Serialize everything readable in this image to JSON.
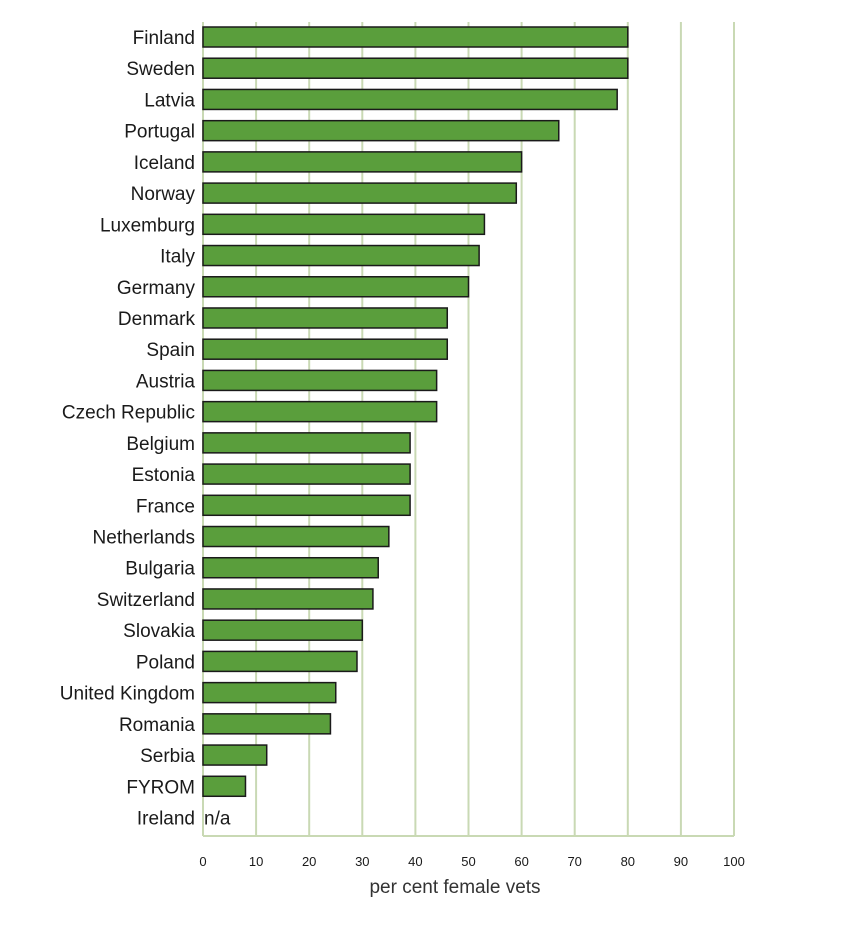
{
  "chart_data": {
    "type": "bar",
    "orientation": "horizontal",
    "xlabel": "per cent female vets",
    "xlim": [
      0,
      100
    ],
    "xticks": [
      "0",
      "10",
      "20",
      "30",
      "40",
      "50",
      "60",
      "70",
      "80",
      "90",
      "100"
    ],
    "grid": "vertical",
    "categories": [
      "Finland",
      "Sweden",
      "Latvia",
      "Portugal",
      "Iceland",
      "Norway",
      "Luxemburg",
      "Italy",
      "Germany",
      "Denmark",
      "Spain",
      "Austria",
      "Czech Republic",
      "Belgium",
      "Estonia",
      "France",
      "Netherlands",
      "Bulgaria",
      "Switzerland",
      "Slovakia",
      "Poland",
      "United Kingdom",
      "Romania",
      "Serbia",
      "FYROM",
      "Ireland"
    ],
    "values": [
      80,
      80,
      78,
      67,
      60,
      59,
      53,
      52,
      50,
      46,
      46,
      44,
      44,
      39,
      39,
      39,
      35,
      33,
      32,
      30,
      29,
      25,
      24,
      12,
      8,
      null
    ],
    "annotations": [
      {
        "category": "Ireland",
        "text": "n/a"
      }
    ]
  },
  "colors": {
    "bar": "#5a9e3c",
    "bar_stroke": "#1a1a1a",
    "grid": "#c9d9b4"
  }
}
